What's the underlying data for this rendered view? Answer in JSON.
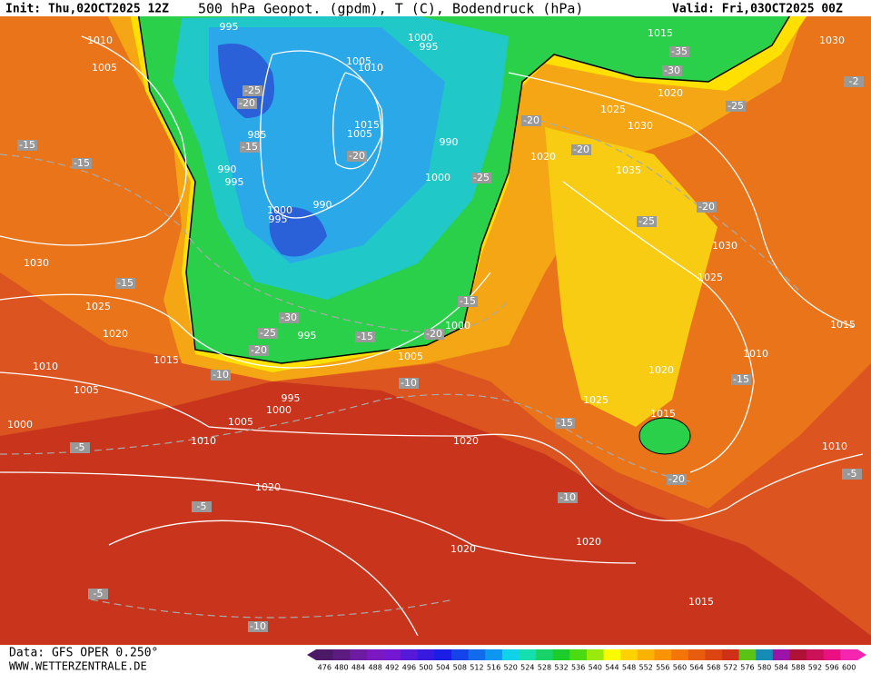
{
  "header": {
    "init": "Init: Thu,02OCT2025 12Z",
    "title": "500 hPa Geopot. (gpdm), T (C), Bodendruck (hPa)",
    "valid": "Valid: Fri,03OCT2025 00Z"
  },
  "footer": {
    "data": "Data: GFS OPER 0.250°",
    "site": "WWW.WETTERZENTRALE.DE"
  },
  "colorbar": {
    "ticks": [
      476,
      480,
      484,
      488,
      492,
      496,
      500,
      504,
      508,
      512,
      516,
      520,
      524,
      528,
      532,
      536,
      540,
      544,
      548,
      552,
      556,
      560,
      564,
      568,
      572,
      576,
      580,
      584,
      588,
      592,
      596,
      600
    ]
  },
  "map": {
    "isobar_labels": [
      "1010",
      "1005",
      "995",
      "1000",
      "995",
      "1005",
      "1010",
      "1015",
      "1005",
      "990",
      "1000",
      "990",
      "995",
      "1000",
      "995",
      "990",
      "985",
      "1030",
      "1025",
      "1020",
      "1015",
      "1010",
      "1005",
      "1000",
      "1005",
      "1000",
      "995",
      "995",
      "1005",
      "1000",
      "1010",
      "1020",
      "1020",
      "1020",
      "1020",
      "1015",
      "1015",
      "1030",
      "1020",
      "1025",
      "1030",
      "1020",
      "1035",
      "1030",
      "1025",
      "1015",
      "1010",
      "1020",
      "1025",
      "1015",
      "1010"
    ],
    "temperature_labels": [
      "-25",
      "-20",
      "-15",
      "-20",
      "-15",
      "-15",
      "-15",
      "-30",
      "-25",
      "-20",
      "-10",
      "-15",
      "-10",
      "-20",
      "-15",
      "-25",
      "-20",
      "-20",
      "-35",
      "-30",
      "-25",
      "-25",
      "-20",
      "-15",
      "-15",
      "-20",
      "-10",
      "-5",
      "-5",
      "-10",
      "-5",
      "-2",
      "-5"
    ]
  }
}
